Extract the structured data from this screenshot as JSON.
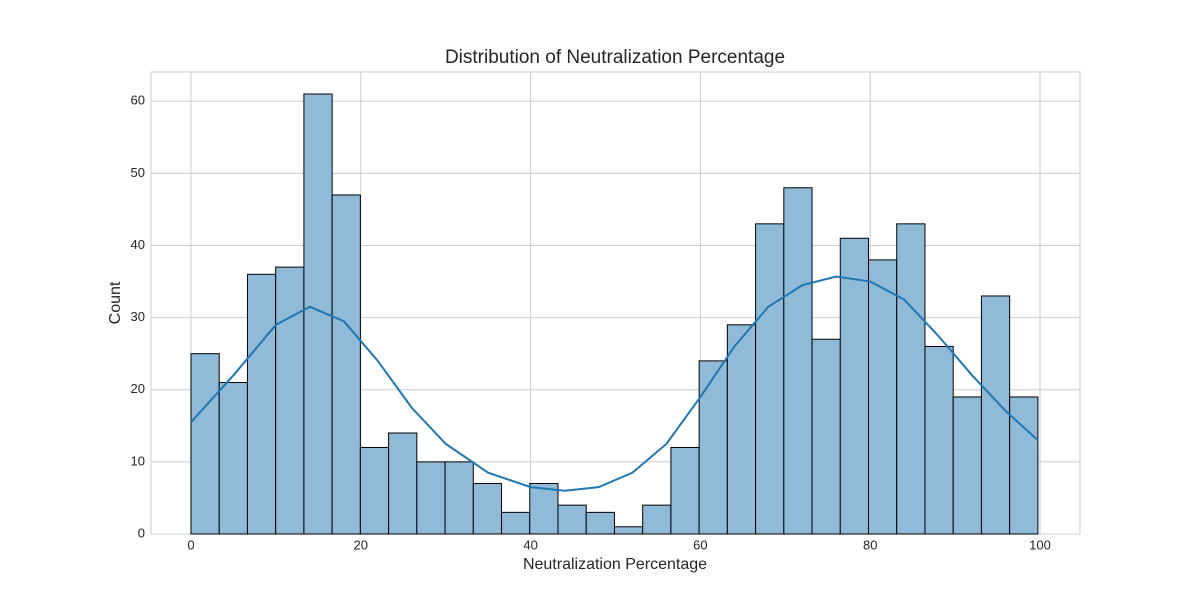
{
  "chart_data": {
    "type": "histogram",
    "title": "Distribution of Neutralization Percentage",
    "x_label": "Neutralization Percentage",
    "y_label": "Count",
    "bins": [
      0,
      3.325,
      6.65,
      9.975,
      13.3,
      16.625,
      19.95,
      23.275,
      26.6,
      29.925,
      33.25,
      36.575,
      39.9,
      43.225,
      46.55,
      49.875,
      53.2,
      56.525,
      59.85,
      63.175,
      66.5,
      69.825,
      73.15,
      76.475,
      79.8,
      83.125,
      86.45,
      89.775,
      93.1,
      96.425,
      99.75
    ],
    "values": [
      25,
      21,
      36,
      37,
      61,
      47,
      12,
      14,
      10,
      10,
      7,
      3,
      7,
      4,
      3,
      1,
      4,
      12,
      24,
      29,
      43,
      48,
      27,
      41,
      38,
      43,
      26,
      19,
      33,
      19
    ],
    "color": "#8fbbd9",
    "edge_color": "#000000",
    "kde": {
      "color": "#1f77b4",
      "x": [
        0,
        5,
        10,
        14,
        18,
        22,
        26,
        30,
        35,
        40,
        44,
        48,
        52,
        56,
        60,
        64,
        68,
        72,
        76,
        80,
        84,
        88,
        92,
        96,
        99.75
      ],
      "y": [
        15.5,
        22,
        29,
        31.5,
        29.5,
        24,
        17.5,
        12.5,
        8.5,
        6.5,
        6,
        6.5,
        8.5,
        12.5,
        19,
        26,
        31.5,
        34.5,
        35.7,
        35,
        32.5,
        27.5,
        22,
        17,
        13
      ]
    },
    "xlim": [
      -4.71,
      104.71
    ],
    "ylim": [
      0,
      64.05
    ],
    "xticks": [
      0,
      20,
      40,
      60,
      80,
      100
    ],
    "yticks": [
      0,
      10,
      20,
      30,
      40,
      50,
      60
    ],
    "grid": true
  }
}
